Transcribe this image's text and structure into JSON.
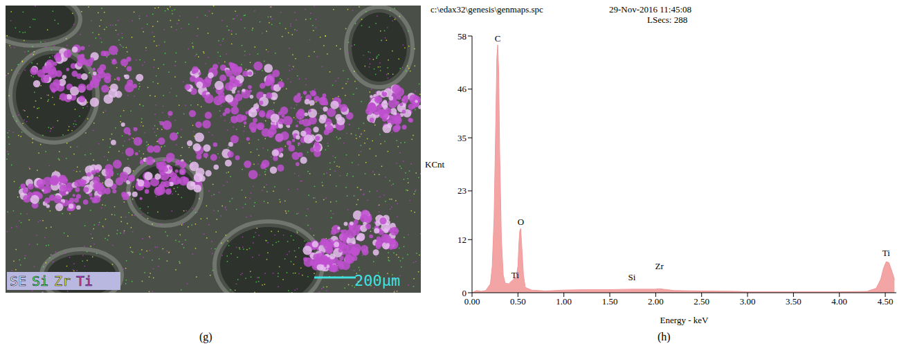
{
  "image_panel": {
    "label": "(g)",
    "map_legend": [
      {
        "text": "SE",
        "color": "#ffffff"
      },
      {
        "text": "Si",
        "color": "#4cff4c"
      },
      {
        "text": "Zr",
        "color": "#ffff40"
      },
      {
        "text": "Ti",
        "color": "#d040e0"
      }
    ],
    "scale_bar": "200μm"
  },
  "chart_data": {
    "type": "area",
    "label": "(h)",
    "header": [
      "c:\\edax32\\genesis\\genmaps.spc",
      "29-Nov-2016 11:45:08",
      "LSecs: 288"
    ],
    "x_label": "Energy - keV",
    "y_label": "KCnt",
    "color": "#f29a9a",
    "xlim": [
      0,
      4.62
    ],
    "xticks": [
      {
        "value": 0,
        "label": "0.00"
      },
      {
        "value": 0.5,
        "label": "0.50"
      },
      {
        "value": 1,
        "label": "1.00"
      },
      {
        "value": 1.5,
        "label": "1.50"
      },
      {
        "value": 2,
        "label": "2.00"
      },
      {
        "value": 2.5,
        "label": "2.50"
      },
      {
        "value": 3,
        "label": "3.00"
      },
      {
        "value": 3.5,
        "label": "3.50"
      },
      {
        "value": 4,
        "label": "4.00"
      },
      {
        "value": 4.5,
        "label": "4.50"
      }
    ],
    "ylim": [
      0,
      58
    ],
    "yticks": [
      0,
      12,
      23,
      35,
      46,
      58
    ],
    "x": [
      0,
      0.05,
      0.1,
      0.15,
      0.2,
      0.22,
      0.24,
      0.26,
      0.27,
      0.28,
      0.29,
      0.3,
      0.32,
      0.34,
      0.36,
      0.4,
      0.44,
      0.46,
      0.48,
      0.5,
      0.51,
      0.52,
      0.53,
      0.54,
      0.56,
      0.58,
      0.65,
      0.8,
      1,
      1.25,
      1.5,
      1.74,
      2,
      2.04,
      2.2,
      2.5,
      2.9,
      3,
      3.5,
      4,
      4.3,
      4.4,
      4.45,
      4.48,
      4.51,
      4.54,
      4.57,
      4.6
    ],
    "values": [
      0,
      0.5,
      0.3,
      0.5,
      2,
      6,
      17,
      40,
      53,
      56,
      50,
      33,
      12,
      4,
      2.2,
      2,
      2.8,
      3.2,
      3.5,
      6,
      11,
      14,
      14.5,
      11,
      4,
      1.2,
      0.6,
      0.4,
      0.6,
      0.7,
      0.7,
      0.8,
      0.8,
      0.9,
      0.5,
      0.4,
      0.3,
      0.2,
      0.2,
      0.2,
      0.3,
      1,
      3,
      5.5,
      7,
      6.8,
      5,
      3
    ],
    "annotations": [
      {
        "text": "C",
        "x": 0.28,
        "y": 56
      },
      {
        "text": "O",
        "x": 0.53,
        "y": 14.5
      },
      {
        "text": "Ti",
        "x": 0.47,
        "y": 2.5
      },
      {
        "text": "Si",
        "x": 1.74,
        "y": 2
      },
      {
        "text": "Zr",
        "x": 2.04,
        "y": 4.5
      },
      {
        "text": "Ti",
        "x": 4.51,
        "y": 7.5
      }
    ]
  }
}
